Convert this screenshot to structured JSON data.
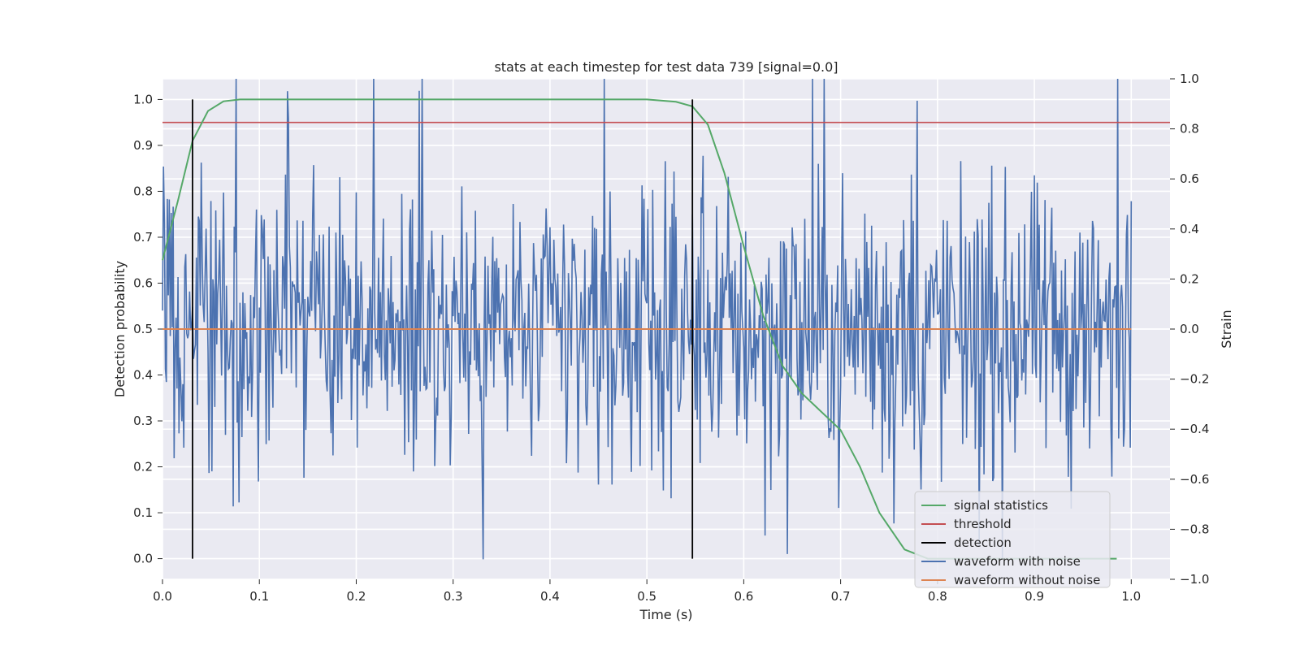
{
  "chart_data": {
    "type": "line",
    "title": "stats at each timestep for test data 739 [signal=0.0]",
    "xlabel": "Time (s)",
    "ylabel_left": "Detection probability",
    "ylabel_right": "Strain",
    "xlim": [
      0.0,
      1.04
    ],
    "ylim_left": [
      -0.045,
      1.045
    ],
    "ylim_right": [
      -1.0,
      1.0
    ],
    "x_ticks": [
      0.0,
      0.1,
      0.2,
      0.3,
      0.4,
      0.5,
      0.6,
      0.7,
      0.8,
      0.9,
      1.0
    ],
    "x_tick_labels": [
      "0.0",
      "0.1",
      "0.2",
      "0.3",
      "0.4",
      "0.5",
      "0.6",
      "0.7",
      "0.8",
      "0.9",
      "1.0"
    ],
    "y_left_ticks": [
      0.0,
      0.1,
      0.2,
      0.3,
      0.4,
      0.5,
      0.6,
      0.7,
      0.8,
      0.9,
      1.0
    ],
    "y_left_tick_labels": [
      "0.0",
      "0.1",
      "0.2",
      "0.3",
      "0.4",
      "0.5",
      "0.6",
      "0.7",
      "0.8",
      "0.9",
      "1.0"
    ],
    "y_right_ticks": [
      -1.0,
      -0.8,
      -0.6,
      -0.4,
      -0.2,
      0.0,
      0.2,
      0.4,
      0.6,
      0.8,
      1.0
    ],
    "y_right_tick_labels": [
      "−1.0",
      "−0.8",
      "−0.6",
      "−0.4",
      "−0.2",
      "0.0",
      "0.2",
      "0.4",
      "0.6",
      "0.8",
      "1.0"
    ],
    "grid": true,
    "legend_position": "bottom-right",
    "series": [
      {
        "name": "signal statistics",
        "axis": "left",
        "color": "#55a868",
        "x": [
          0.0,
          0.016,
          0.031,
          0.047,
          0.063,
          0.08,
          0.1,
          0.2,
          0.3,
          0.4,
          0.5,
          0.53,
          0.547,
          0.563,
          0.58,
          0.6,
          0.62,
          0.64,
          0.66,
          0.68,
          0.7,
          0.72,
          0.74,
          0.766,
          0.79,
          0.82,
          0.86,
          0.9,
          0.94,
          0.985
        ],
        "y": [
          0.65,
          0.78,
          0.91,
          0.975,
          0.996,
          1.0,
          1.0,
          1.0,
          1.0,
          1.0,
          1.0,
          0.995,
          0.985,
          0.945,
          0.84,
          0.68,
          0.53,
          0.42,
          0.36,
          0.32,
          0.28,
          0.2,
          0.1,
          0.02,
          0.0,
          0.0,
          0.0,
          0.0,
          0.0,
          0.0
        ]
      },
      {
        "name": "threshold",
        "axis": "left",
        "color": "#c44e52",
        "x": [
          0.0,
          1.04
        ],
        "y": [
          0.95,
          0.95
        ]
      },
      {
        "name": "waveform with noise",
        "axis": "right",
        "color": "#4c72b0",
        "generated_noise": true,
        "x_range": [
          0.0,
          1.0
        ],
        "amplitude_range": [
          -0.92,
          1.0
        ]
      },
      {
        "name": "waveform without noise",
        "axis": "right",
        "color": "#dd8452",
        "x": [
          0.0,
          1.0
        ],
        "y": [
          0.0,
          0.0
        ]
      }
    ],
    "detections": {
      "name": "detection",
      "color": "#000000",
      "x": [
        0.031,
        0.547
      ],
      "y_range": [
        0.0,
        1.0
      ]
    },
    "legend": [
      {
        "label": "signal statistics",
        "color": "#55a868"
      },
      {
        "label": "threshold",
        "color": "#c44e52"
      },
      {
        "label": "detection",
        "color": "#000000"
      },
      {
        "label": "waveform with noise",
        "color": "#4c72b0"
      },
      {
        "label": "waveform without noise",
        "color": "#dd8452"
      }
    ],
    "colors": {
      "plot_background": "#eaeaf2",
      "grid": "#ffffff",
      "text": "#262626"
    }
  }
}
